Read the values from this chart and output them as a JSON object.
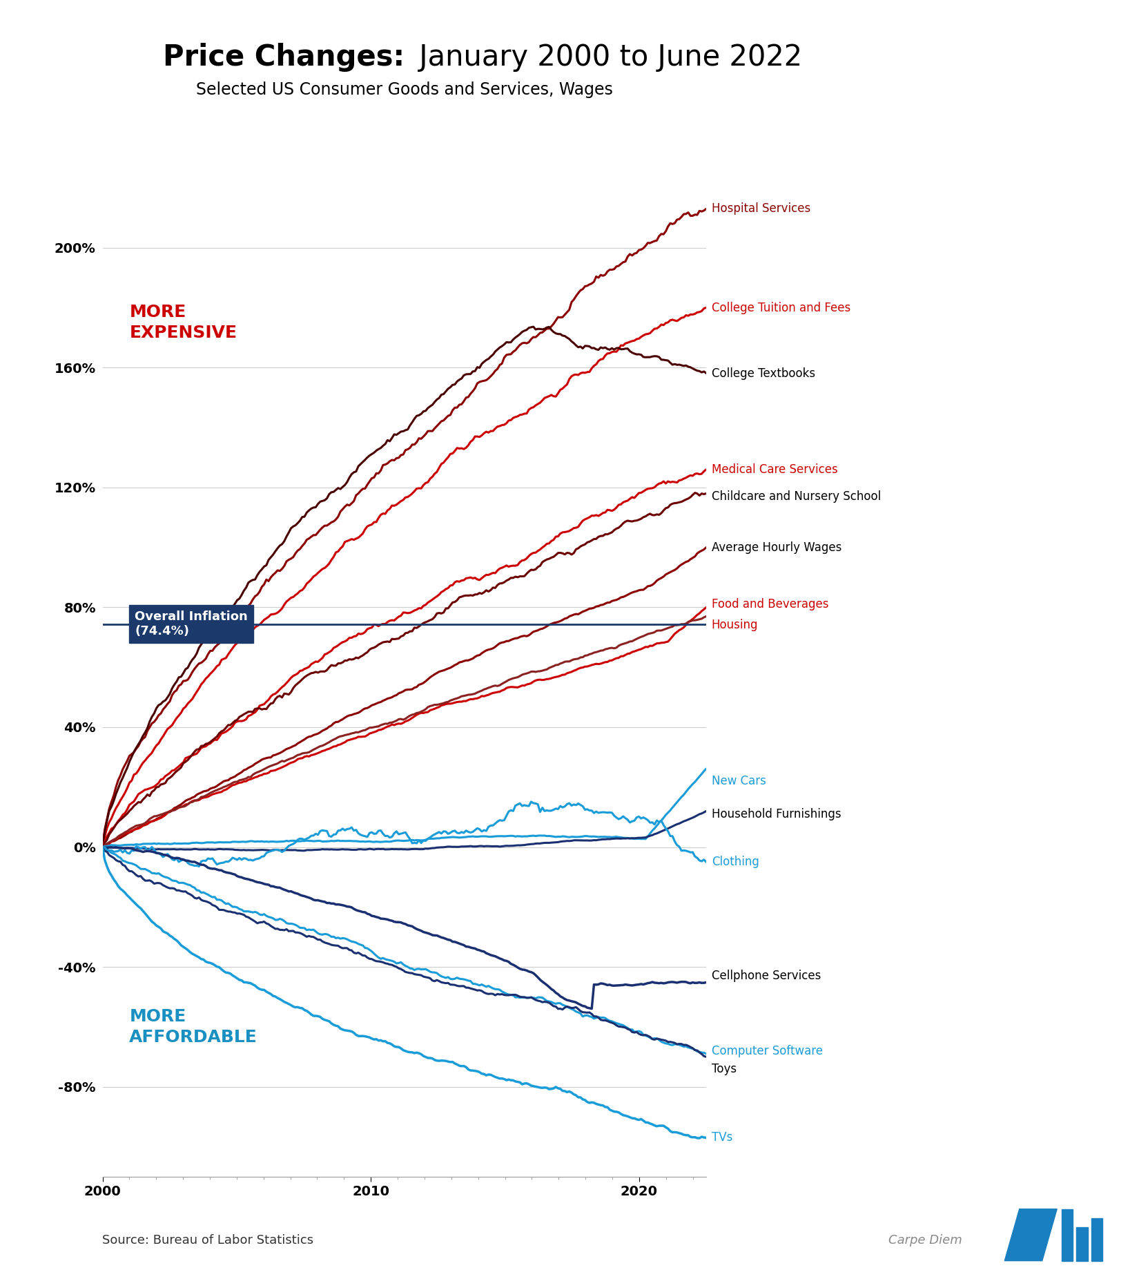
{
  "title_bold": "Price Changes:",
  "title_regular": "  January 2000 to June 2022",
  "subtitle": "Selected US Consumer Goods and Services, Wages",
  "source": "Source: Bureau of Labor Statistics",
  "inflation_label": "Overall Inflation\n(74.4%)",
  "inflation_value": 74.4,
  "overall_color": "#1b3a6b",
  "more_expensive_label": "MORE\nEXPENSIVE",
  "more_expensive_color": "#cc0000",
  "more_affordable_label": "MORE\nAFFORDABLE",
  "more_affordable_color": "#1a8fc1",
  "series_styles": {
    "Hospital Services": {
      "color": "#8b0000",
      "lw": 2.2
    },
    "College Tuition and Fees": {
      "color": "#cc0000",
      "lw": 2.2
    },
    "College Textbooks": {
      "color": "#4a0000",
      "lw": 2.2
    },
    "Medical Care Services": {
      "color": "#cc0000",
      "lw": 2.2
    },
    "Childcare and Nursery School": {
      "color": "#6b0000",
      "lw": 2.2
    },
    "Average Hourly Wages": {
      "color": "#8b0000",
      "lw": 2.2
    },
    "Food and Beverages": {
      "color": "#cc0000",
      "lw": 2.2
    },
    "Housing": {
      "color": "#8b2222",
      "lw": 2.2
    },
    "New Cars": {
      "color": "#1a9cd8",
      "lw": 2.2
    },
    "Household Furnishings": {
      "color": "#1a3070",
      "lw": 2.2
    },
    "Clothing": {
      "color": "#1a9cd8",
      "lw": 2.2
    },
    "Cellphone Services": {
      "color": "#1a3070",
      "lw": 2.5
    },
    "Computer Software": {
      "color": "#1a9cd8",
      "lw": 2.2
    },
    "Toys": {
      "color": "#1a3070",
      "lw": 2.2
    },
    "TVs": {
      "color": "#1a9cd8",
      "lw": 2.5
    }
  },
  "label_positions": {
    "Hospital Services": {
      "y": 213,
      "color": "#8b0000"
    },
    "College Tuition and Fees": {
      "y": 180,
      "color": "#cc0000"
    },
    "College Textbooks": {
      "y": 158,
      "color": "#000000"
    },
    "Medical Care Services": {
      "y": 126,
      "color": "#cc0000"
    },
    "Childcare and Nursery School": {
      "y": 117,
      "color": "#000000"
    },
    "Average Hourly Wages": {
      "y": 100,
      "color": "#000000"
    },
    "Food and Beverages": {
      "y": 81,
      "color": "#cc0000"
    },
    "Housing": {
      "y": 74,
      "color": "#cc0000"
    },
    "New Cars": {
      "y": 22,
      "color": "#1a9cd8"
    },
    "Household Furnishings": {
      "y": 11,
      "color": "#000000"
    },
    "Clothing": {
      "y": -5,
      "color": "#1a9cd8"
    },
    "Cellphone Services": {
      "y": -43,
      "color": "#000000"
    },
    "Computer Software": {
      "y": -68,
      "color": "#1a9cd8"
    },
    "Toys": {
      "y": -74,
      "color": "#000000"
    },
    "TVs": {
      "y": -97,
      "color": "#1a9cd8"
    }
  },
  "ylim": [
    -110,
    240
  ],
  "yticks": [
    -80,
    -40,
    0,
    40,
    80,
    120,
    160,
    200
  ],
  "xticks": [
    2000,
    2010,
    2020
  ],
  "background_color": "#ffffff",
  "grid_color": "#cccccc"
}
